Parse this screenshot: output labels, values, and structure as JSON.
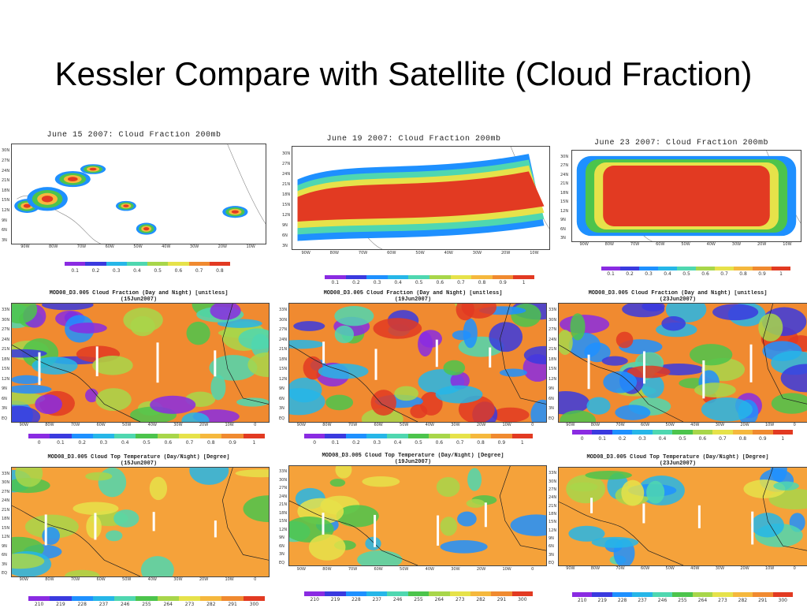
{
  "slide": {
    "title": "Kessler Compare with Satellite (Cloud Fraction)"
  },
  "model_panels": [
    {
      "title": "June 15 2007: Cloud Fraction 200mb",
      "coverage": "sparse"
    },
    {
      "title": "June 19 2007: Cloud Fraction 200mb",
      "coverage": "band"
    },
    {
      "title": "June 23 2007: Cloud Fraction 200mb",
      "coverage": "full"
    }
  ],
  "model_colorbars": [
    [
      "0.1",
      "0.2",
      "0.3",
      "0.4",
      "0.5",
      "0.6",
      "0.7",
      "0.8"
    ],
    [
      "0.1",
      "0.2",
      "0.3",
      "0.4",
      "0.5",
      "0.6",
      "0.7",
      "0.8",
      "0.9",
      "1"
    ],
    [
      "0.1",
      "0.2",
      "0.3",
      "0.4",
      "0.5",
      "0.6",
      "0.7",
      "0.8",
      "0.9",
      "1"
    ]
  ],
  "modis_cf_panels": [
    {
      "line1": "MOD08_D3.005 Cloud Fraction (Day and Night) [unitless]",
      "line2": "(15Jun2007)"
    },
    {
      "line1": "MOD08_D3.005 Cloud Fraction (Day and Night) [unitless]",
      "line2": "(19Jun2007)"
    },
    {
      "line1": "MOD08_D3.005 Cloud Fraction (Day and Night) [unitless]",
      "line2": "(23Jun2007)"
    }
  ],
  "modis_cf_colorbar": [
    "0",
    "0.1",
    "0.2",
    "0.3",
    "0.4",
    "0.5",
    "0.6",
    "0.7",
    "0.8",
    "0.9",
    "1"
  ],
  "modis_ctt_panels": [
    {
      "line1": "MOD08_D3.005 Cloud Top Temperature (Day/Night) [Degree]",
      "line2": "(15Jun2007)"
    },
    {
      "line1": "MOD08_D3.005 Cloud Top Temperature (Day/Night) [Degree]",
      "line2": "(19Jun2007)"
    },
    {
      "line1": "MOD08_D3.005 Cloud Top Temperature (Day/Night) [Degree]",
      "line2": "(23Jun2007)"
    }
  ],
  "modis_ctt_colorbar": [
    "210",
    "219",
    "228",
    "237",
    "246",
    "255",
    "264",
    "273",
    "282",
    "291",
    "300"
  ],
  "axes": {
    "lat_labels": [
      "30N",
      "27N",
      "24N",
      "21N",
      "18N",
      "15N",
      "12N",
      "9N",
      "6N",
      "3N"
    ],
    "modis_lat_labels": [
      "33N",
      "30N",
      "27N",
      "24N",
      "21N",
      "18N",
      "15N",
      "12N",
      "9N",
      "6N",
      "3N",
      "EQ"
    ],
    "lon_labels": [
      "90W",
      "80W",
      "70W",
      "60W",
      "50W",
      "40W",
      "30W",
      "20W",
      "10W"
    ],
    "modis_lon_labels": [
      "90W",
      "80W",
      "70W",
      "60W",
      "50W",
      "40W",
      "30W",
      "20W",
      "10W",
      "0"
    ]
  },
  "colors": {
    "scale": [
      "#8a2be2",
      "#3a3adf",
      "#1e90ff",
      "#26b6e8",
      "#4fd7b0",
      "#4cc44c",
      "#a8d64a",
      "#e6e24a",
      "#f5b83d",
      "#f08a30",
      "#e23a22"
    ],
    "land": "#7a7a7a",
    "frame": "#444444"
  }
}
